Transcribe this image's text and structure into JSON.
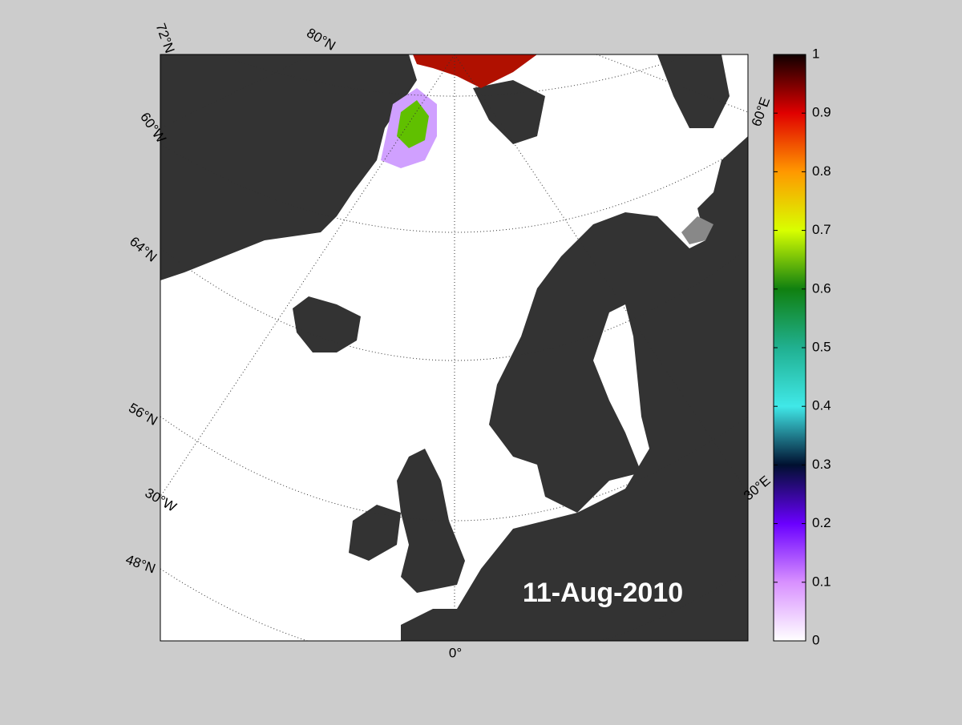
{
  "map": {
    "date": "11-Aug-2010",
    "graticule_labels": [
      "72°N",
      "80°N",
      "60°W",
      "64°N",
      "56°N",
      "30°W",
      "48°N",
      "0°",
      "60°E",
      "30°E"
    ]
  },
  "colorbar": {
    "lim": [
      0,
      1
    ],
    "ticks": [
      0,
      0.1,
      0.2,
      0.3,
      0.4,
      0.5,
      0.6,
      0.7,
      0.8,
      0.9,
      1
    ],
    "colormap": [
      "#ffffff",
      "#d890ff",
      "#6a00ff",
      "#001030",
      "#40e8e8",
      "#20b090",
      "#108010",
      "#d8ff00",
      "#ff9800",
      "#e00000",
      "#100000"
    ]
  }
}
